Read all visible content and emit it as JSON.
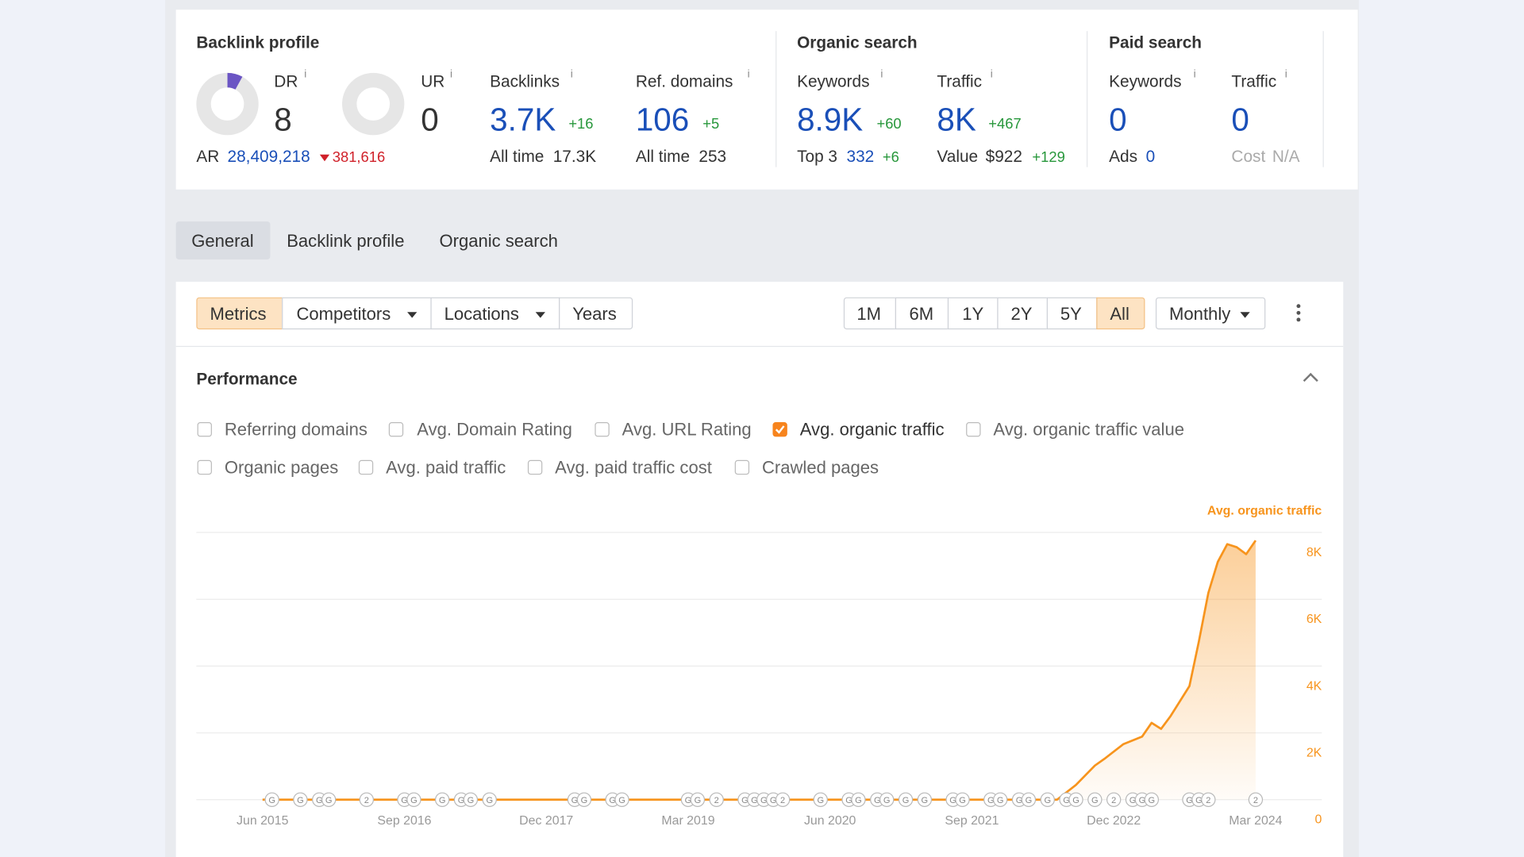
{
  "info_icon": "i",
  "summary": {
    "backlink_profile": {
      "title": "Backlink profile",
      "dr": {
        "label": "DR",
        "value": 8
      },
      "ur": {
        "label": "UR",
        "value": 0
      },
      "ar": {
        "label": "AR",
        "value": "28,409,218",
        "change": "381,616"
      },
      "backlinks": {
        "label": "Backlinks",
        "value": "3.7K",
        "change": "+16",
        "sub_label": "All time",
        "sub_value": "17.3K"
      },
      "ref_domains": {
        "label": "Ref. domains",
        "value": "106",
        "change": "+5",
        "sub_label": "All time",
        "sub_value": "253"
      }
    },
    "organic_search": {
      "title": "Organic search",
      "keywords": {
        "label": "Keywords",
        "value": "8.9K",
        "change": "+60",
        "sub_label": "Top 3",
        "sub_value": "332",
        "sub_change": "+6"
      },
      "traffic": {
        "label": "Traffic",
        "value": "8K",
        "change": "+467",
        "sub_label": "Value",
        "sub_value": "$922",
        "sub_change": "+129"
      }
    },
    "paid_search": {
      "title": "Paid search",
      "keywords": {
        "label": "Keywords",
        "value": "0",
        "sub_label": "Ads",
        "sub_value": "0"
      },
      "traffic": {
        "label": "Traffic",
        "value": "0",
        "sub_label": "Cost",
        "sub_value": "N/A"
      }
    }
  },
  "tabs": [
    "General",
    "Backlink profile",
    "Organic search"
  ],
  "toolbar": {
    "views": [
      "Metrics",
      "Competitors",
      "Locations",
      "Years"
    ],
    "ranges": [
      "1M",
      "6M",
      "1Y",
      "2Y",
      "5Y",
      "All"
    ],
    "interval": "Monthly"
  },
  "performance": {
    "title": "Performance",
    "metrics": [
      {
        "label": "Referring domains",
        "checked": false
      },
      {
        "label": "Avg. Domain Rating",
        "checked": false
      },
      {
        "label": "Avg. URL Rating",
        "checked": false
      },
      {
        "label": "Avg. organic traffic",
        "checked": true
      },
      {
        "label": "Avg. organic traffic value",
        "checked": false
      },
      {
        "label": "Organic pages",
        "checked": false
      },
      {
        "label": "Avg. paid traffic",
        "checked": false
      },
      {
        "label": "Avg. paid traffic cost",
        "checked": false
      },
      {
        "label": "Crawled pages",
        "checked": false
      }
    ]
  },
  "chart_data": {
    "type": "area",
    "x": [
      "2015-06",
      "2022-06",
      "2022-08",
      "2022-10",
      "2022-11",
      "2023-01",
      "2023-03",
      "2023-04",
      "2023-05",
      "2023-06",
      "2023-08",
      "2023-09",
      "2023-10",
      "2023-11",
      "2023-12",
      "2024-01",
      "2024-02",
      "2024-03"
    ],
    "series": [
      {
        "name": "Avg. organic traffic",
        "color": "#f7941d",
        "values": [
          0,
          0,
          440,
          1020,
          1220,
          1660,
          1890,
          2300,
          2120,
          2500,
          3400,
          4740,
          6190,
          7120,
          7650,
          7560,
          7350,
          7760
        ]
      }
    ],
    "xlim": [
      "2014-11",
      "2024-10"
    ],
    "xticks": [
      {
        "value": "2015-06",
        "label": "Jun 2015"
      },
      {
        "value": "2016-09",
        "label": "Sep 2016"
      },
      {
        "value": "2017-12",
        "label": "Dec 2017"
      },
      {
        "value": "2019-03",
        "label": "Mar 2019"
      },
      {
        "value": "2020-06",
        "label": "Jun 2020"
      },
      {
        "value": "2021-09",
        "label": "Sep 2021"
      },
      {
        "value": "2022-12",
        "label": "Dec 2022"
      },
      {
        "value": "2024-03",
        "label": "Mar 2024"
      }
    ],
    "ylim": [
      0,
      8000
    ],
    "yticks": [
      0,
      {
        "value": 2000,
        "label": "2K"
      },
      {
        "value": 4000,
        "label": "4K"
      },
      {
        "value": 6000,
        "label": "6K"
      },
      {
        "value": 8000,
        "label": "8K"
      }
    ],
    "grid": true,
    "annotations": [
      {
        "x": "2015-07",
        "label": "G"
      },
      {
        "x": "2015-10",
        "label": "G"
      },
      {
        "x": "2015-12",
        "label": "G"
      },
      {
        "x": "2016-01",
        "label": "G"
      },
      {
        "x": "2016-05",
        "label": "2"
      },
      {
        "x": "2016-09",
        "label": "G"
      },
      {
        "x": "2016-10",
        "label": "G"
      },
      {
        "x": "2017-01",
        "label": "G"
      },
      {
        "x": "2017-03",
        "label": "G"
      },
      {
        "x": "2017-04",
        "label": "G"
      },
      {
        "x": "2017-06",
        "label": "G"
      },
      {
        "x": "2018-03",
        "label": "G"
      },
      {
        "x": "2018-04",
        "label": "G"
      },
      {
        "x": "2018-07",
        "label": "G"
      },
      {
        "x": "2018-08",
        "label": "G"
      },
      {
        "x": "2019-03",
        "label": "G"
      },
      {
        "x": "2019-04",
        "label": "G"
      },
      {
        "x": "2019-06",
        "label": "2"
      },
      {
        "x": "2019-09",
        "label": "G"
      },
      {
        "x": "2019-10",
        "label": "G"
      },
      {
        "x": "2019-11",
        "label": "G"
      },
      {
        "x": "2019-12",
        "label": "G"
      },
      {
        "x": "2020-01",
        "label": "2"
      },
      {
        "x": "2020-05",
        "label": "G"
      },
      {
        "x": "2020-08",
        "label": "G"
      },
      {
        "x": "2020-09",
        "label": "G"
      },
      {
        "x": "2020-11",
        "label": "G"
      },
      {
        "x": "2020-12",
        "label": "G"
      },
      {
        "x": "2021-02",
        "label": "G"
      },
      {
        "x": "2021-04",
        "label": "G"
      },
      {
        "x": "2021-07",
        "label": "G"
      },
      {
        "x": "2021-08",
        "label": "G"
      },
      {
        "x": "2021-11",
        "label": "G"
      },
      {
        "x": "2021-12",
        "label": "G"
      },
      {
        "x": "2022-02",
        "label": "G"
      },
      {
        "x": "2022-03",
        "label": "G"
      },
      {
        "x": "2022-05",
        "label": "G"
      },
      {
        "x": "2022-07",
        "label": "G"
      },
      {
        "x": "2022-08",
        "label": "G"
      },
      {
        "x": "2022-10",
        "label": "G"
      },
      {
        "x": "2022-12",
        "label": "2"
      },
      {
        "x": "2023-02",
        "label": "G"
      },
      {
        "x": "2023-03",
        "label": "G"
      },
      {
        "x": "2023-04",
        "label": "G"
      },
      {
        "x": "2023-08",
        "label": "G"
      },
      {
        "x": "2023-09",
        "label": "G"
      },
      {
        "x": "2023-10",
        "label": "2"
      },
      {
        "x": "2024-03",
        "label": "2"
      }
    ]
  }
}
